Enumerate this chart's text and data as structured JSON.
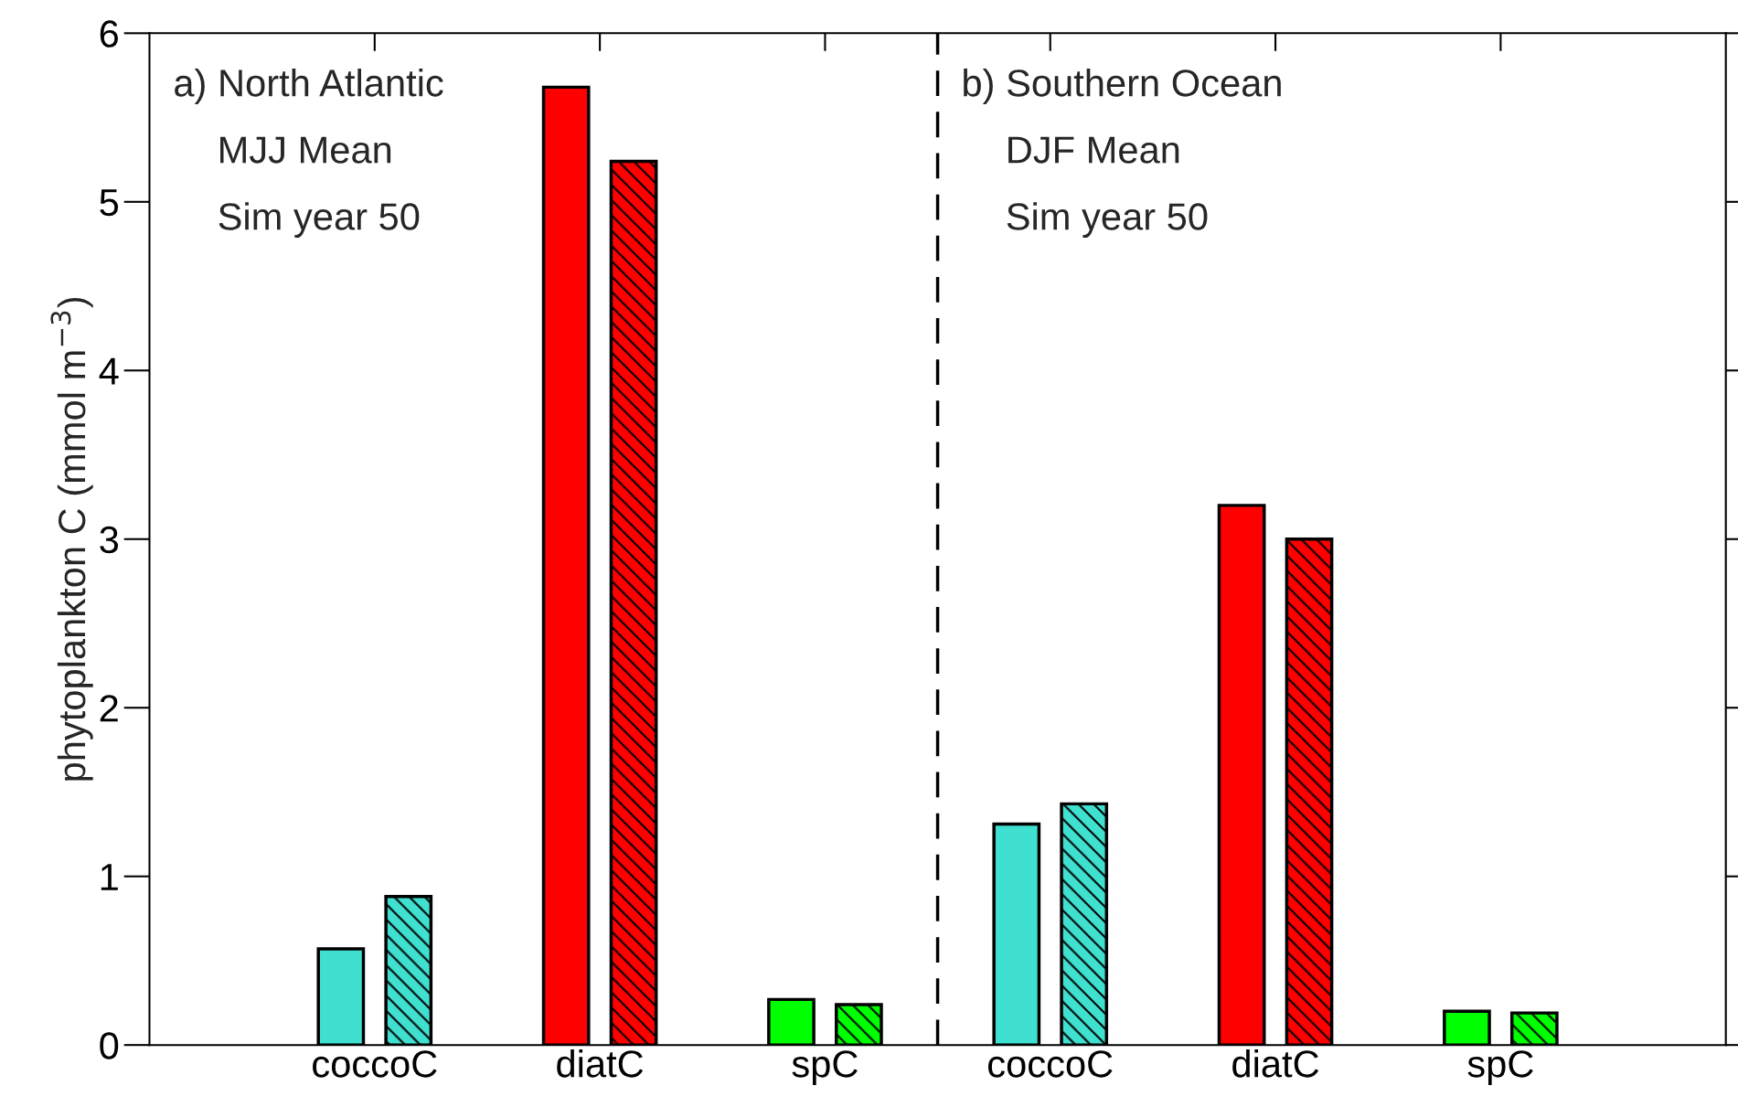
{
  "chart_data": {
    "type": "bar",
    "ylabel": "phytoplankton C (mmol m$^{−3}$)",
    "categories": [
      "coccoC",
      "diatC",
      "spC",
      "coccoC",
      "diatC",
      "spC"
    ],
    "series": [
      {
        "colors": [
          "#40e0d0",
          "#ff0000",
          "#00ff00",
          "#40e0d0",
          "#ff0000",
          "#00ff00"
        ],
        "values": [
          0.57,
          5.68,
          0.27,
          1.31,
          3.2,
          0.2
        ]
      },
      {
        "colors": [
          "#40e0d0",
          "#ff0000",
          "#00ff00",
          "#40e0d0",
          "#ff0000",
          "#00ff00"
        ],
        "values": [
          0.88,
          5.24,
          0.24,
          1.43,
          3.0,
          0.19
        ]
      }
    ],
    "ylim": [
      0,
      6
    ],
    "yticks": [
      0,
      1,
      2,
      3,
      4,
      5,
      6
    ],
    "annotations": [
      "a) North Atlantic",
      "MJJ Mean",
      "Sim year 50",
      "b) Southern Ocean",
      "DJF Mean",
      "Sim year 50"
    ],
    "grid": false,
    "legend": false
  }
}
